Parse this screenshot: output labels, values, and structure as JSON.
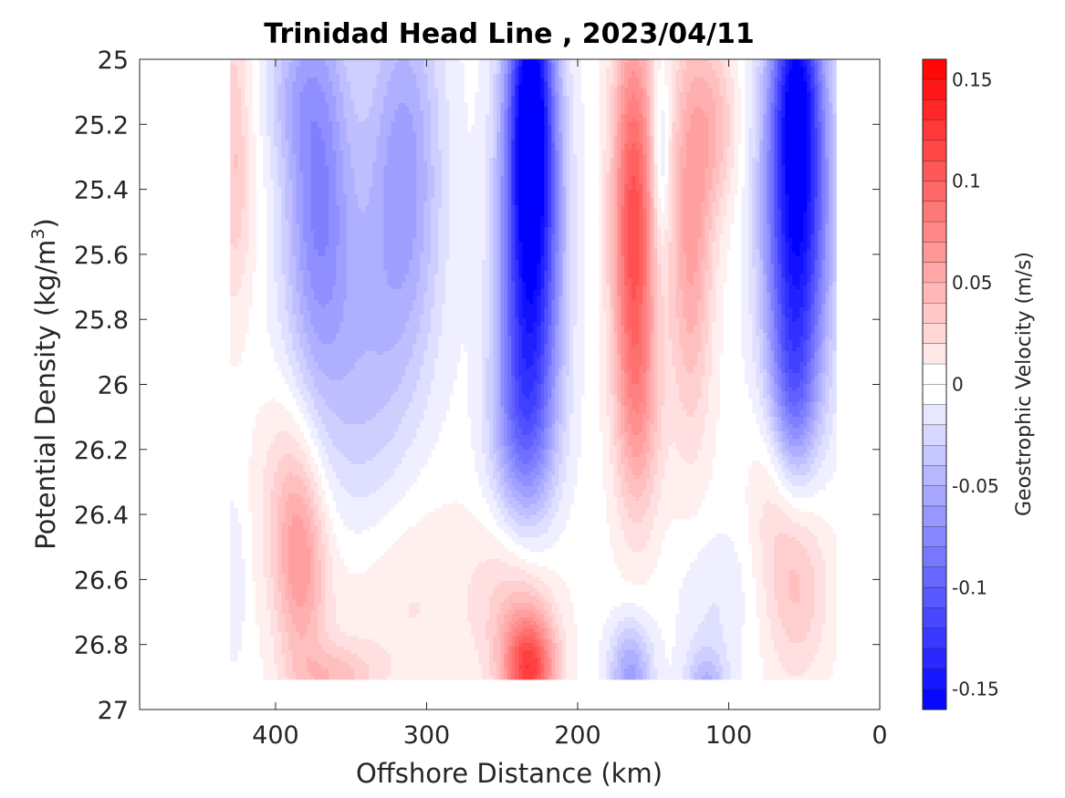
{
  "chart_data": {
    "type": "heatmap",
    "subtype": "filled-contour",
    "title": "Trinidad Head Line , 2023/04/11",
    "xlabel": "Offshore Distance (km)",
    "ylabel": {
      "main": "Potential Density (kg/m",
      "superscript": "3",
      "close": ")"
    },
    "xlim": [
      490,
      0
    ],
    "x_reversed": true,
    "ylim": [
      25,
      27
    ],
    "y_reversed": true,
    "x_ticks": [
      400,
      300,
      200,
      100,
      0
    ],
    "x_tick_labels": [
      "400",
      "300",
      "200",
      "100",
      "0"
    ],
    "y_ticks": [
      25,
      25.2,
      25.4,
      25.6,
      25.8,
      26,
      26.2,
      26.4,
      26.6,
      26.8,
      27
    ],
    "y_tick_labels": [
      "25",
      "25.2",
      "25.4",
      "25.6",
      "25.8",
      "26",
      "26.2",
      "26.4",
      "26.6",
      "26.8",
      "27"
    ],
    "colorbar": {
      "label": "Geostrophic Velocity (m/s)",
      "min": -0.16,
      "max": 0.16,
      "step": 0.01,
      "ticks": [
        0.15,
        0.1,
        0.05,
        0,
        -0.05,
        -0.1,
        -0.15
      ],
      "tick_labels": [
        "0.15",
        "0.1",
        "0.05",
        "0",
        "-0.05",
        "-0.1",
        "-0.15"
      ],
      "colormap": "blue-white-red",
      "negative_color": "#0000ff",
      "zero_color": "#ffffff",
      "positive_color": "#ff0000"
    },
    "features": [
      {
        "x": 428,
        "y": 25.25,
        "sx": 7,
        "sy": 0.35,
        "v": 0.03
      },
      {
        "x": 420,
        "y": 25.45,
        "sx": 10,
        "sy": 0.25,
        "v": 0.01
      },
      {
        "x": 372,
        "y": 25.35,
        "sx": 16,
        "sy": 0.45,
        "v": -0.07
      },
      {
        "x": 392,
        "y": 25.1,
        "sx": 12,
        "sy": 0.15,
        "v": -0.02
      },
      {
        "x": 355,
        "y": 25.85,
        "sx": 28,
        "sy": 0.4,
        "v": -0.02
      },
      {
        "x": 315,
        "y": 25.35,
        "sx": 18,
        "sy": 0.45,
        "v": -0.06
      },
      {
        "x": 340,
        "y": 26.1,
        "sx": 18,
        "sy": 0.35,
        "v": -0.015
      },
      {
        "x": 231,
        "y": 25.05,
        "sx": 10,
        "sy": 0.3,
        "v": -0.1
      },
      {
        "x": 231,
        "y": 25.55,
        "sx": 14,
        "sy": 0.45,
        "v": -0.15
      },
      {
        "x": 238,
        "y": 26.15,
        "sx": 15,
        "sy": 0.25,
        "v": -0.05
      },
      {
        "x": 163,
        "y": 25.5,
        "sx": 10,
        "sy": 0.45,
        "v": 0.11
      },
      {
        "x": 158,
        "y": 26.1,
        "sx": 11,
        "sy": 0.25,
        "v": 0.03
      },
      {
        "x": 125,
        "y": 25.5,
        "sx": 10,
        "sy": 0.45,
        "v": 0.06
      },
      {
        "x": 108,
        "y": 25.2,
        "sx": 10,
        "sy": 0.2,
        "v": 0.035
      },
      {
        "x": 145,
        "y": 25.3,
        "sx": 4,
        "sy": 0.2,
        "v": -0.035
      },
      {
        "x": 55,
        "y": 25.05,
        "sx": 10,
        "sy": 0.2,
        "v": -0.06
      },
      {
        "x": 55,
        "y": 25.45,
        "sx": 15,
        "sy": 0.45,
        "v": -0.16
      },
      {
        "x": 58,
        "y": 26.05,
        "sx": 10,
        "sy": 0.2,
        "v": -0.04
      },
      {
        "x": 383,
        "y": 26.55,
        "sx": 12,
        "sy": 0.25,
        "v": 0.055
      },
      {
        "x": 395,
        "y": 26.3,
        "sx": 14,
        "sy": 0.25,
        "v": 0.02
      },
      {
        "x": 320,
        "y": 26.65,
        "sx": 40,
        "sy": 0.25,
        "v": 0.018
      },
      {
        "x": 360,
        "y": 26.9,
        "sx": 18,
        "sy": 0.07,
        "v": 0.035
      },
      {
        "x": 232,
        "y": 26.88,
        "sx": 12,
        "sy": 0.12,
        "v": 0.11
      },
      {
        "x": 240,
        "y": 26.65,
        "sx": 18,
        "sy": 0.2,
        "v": 0.035
      },
      {
        "x": 55,
        "y": 26.6,
        "sx": 15,
        "sy": 0.22,
        "v": 0.04
      },
      {
        "x": 70,
        "y": 26.3,
        "sx": 12,
        "sy": 0.2,
        "v": 0.02
      },
      {
        "x": 165,
        "y": 26.9,
        "sx": 10,
        "sy": 0.12,
        "v": -0.06
      },
      {
        "x": 115,
        "y": 26.95,
        "sx": 10,
        "sy": 0.1,
        "v": -0.05
      },
      {
        "x": 110,
        "y": 26.65,
        "sx": 18,
        "sy": 0.15,
        "v": -0.015
      },
      {
        "x": 428,
        "y": 26.6,
        "sx": 6,
        "sy": 0.18,
        "v": -0.015
      }
    ]
  }
}
